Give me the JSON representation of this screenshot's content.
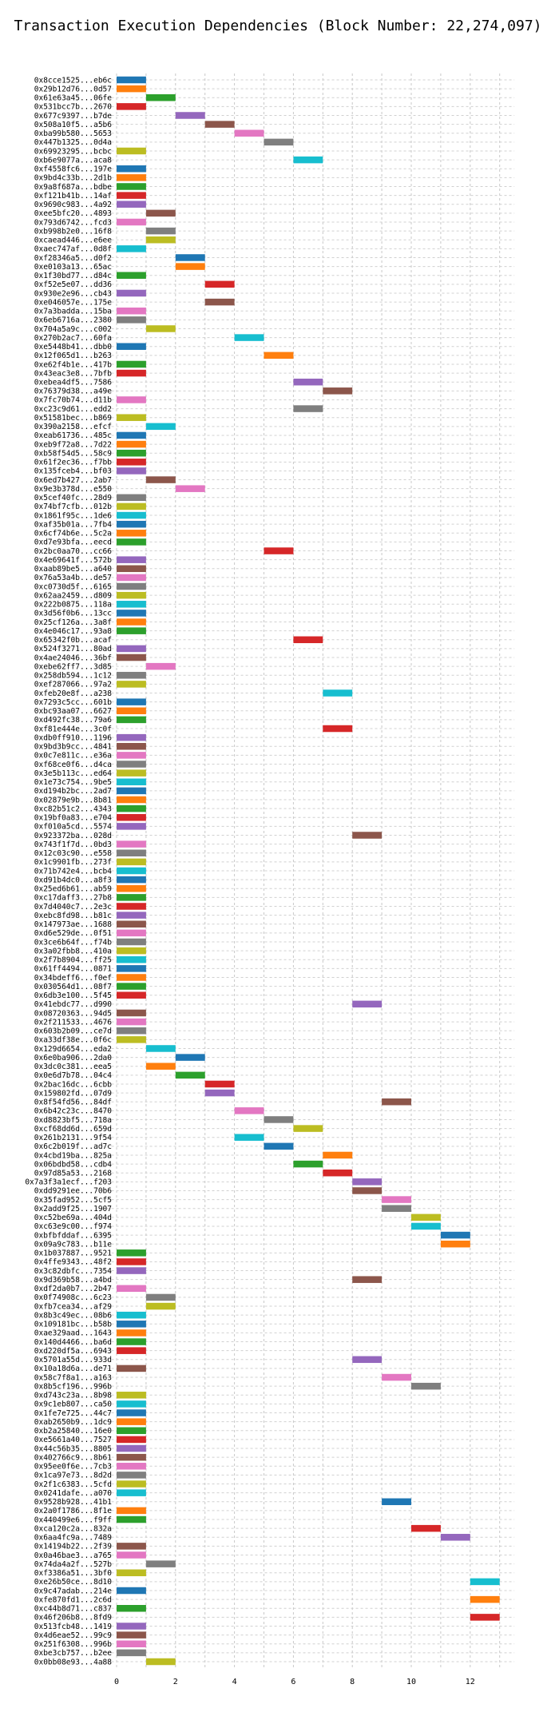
{
  "chart_data": {
    "type": "gantt",
    "title": "Transaction Execution Dependencies (Block Number: 22,274,097)",
    "xlabel": "",
    "ylabel": "",
    "xlim": [
      -0.5,
      13.5
    ],
    "x_ticks": [
      0,
      2,
      4,
      6,
      8,
      10,
      12
    ],
    "grid": true,
    "bar_width": 1,
    "palette": [
      "#1f77b4",
      "#ff7f0e",
      "#2ca02c",
      "#d62728",
      "#9467bd",
      "#8c564b",
      "#e377c2",
      "#7f7f7f",
      "#bcbd22",
      "#17becf"
    ],
    "transactions": [
      {
        "label": "0x8cce1525...eb6c",
        "start": 0
      },
      {
        "label": "0x29b12d76...0d57",
        "start": 0
      },
      {
        "label": "0x61e63a45...06fe",
        "start": 1
      },
      {
        "label": "0x531bcc7b...2670",
        "start": 0
      },
      {
        "label": "0x677c9397...b7de",
        "start": 2
      },
      {
        "label": "0x508a10f5...a5b6",
        "start": 3
      },
      {
        "label": "0xba99b580...5653",
        "start": 4
      },
      {
        "label": "0x447b1325...0d4a",
        "start": 5
      },
      {
        "label": "0x69923295...bcbc",
        "start": 0
      },
      {
        "label": "0xb6e9077a...aca8",
        "start": 6
      },
      {
        "label": "0xf4558fc6...197e",
        "start": 0
      },
      {
        "label": "0x9bd4c33b...2d1b",
        "start": 0
      },
      {
        "label": "0x9a8f687a...bdbe",
        "start": 0
      },
      {
        "label": "0xf121b41b...14af",
        "start": 0
      },
      {
        "label": "0x9690c983...4a92",
        "start": 0
      },
      {
        "label": "0xee5bfc20...4893",
        "start": 1
      },
      {
        "label": "0x793d6742...fcd3",
        "start": 0
      },
      {
        "label": "0xb998b2e0...16f8",
        "start": 1
      },
      {
        "label": "0xcaead446...e6ee",
        "start": 1
      },
      {
        "label": "0xaec747af...0d8f",
        "start": 0
      },
      {
        "label": "0xf28346a5...d0f2",
        "start": 2
      },
      {
        "label": "0xe0103a13...65ac",
        "start": 2
      },
      {
        "label": "0x1f30bd77...d84c",
        "start": 0
      },
      {
        "label": "0xf52e5e07...dd36",
        "start": 3
      },
      {
        "label": "0x930e2e96...cb43",
        "start": 0
      },
      {
        "label": "0xe046057e...175e",
        "start": 3
      },
      {
        "label": "0x7a3badda...15ba",
        "start": 0
      },
      {
        "label": "0x6eb6716a...2380",
        "start": 0
      },
      {
        "label": "0x704a5a9c...c002",
        "start": 1
      },
      {
        "label": "0x270b2ac7...60fa",
        "start": 4
      },
      {
        "label": "0xe5448b41...dbb0",
        "start": 0
      },
      {
        "label": "0x12f065d1...b263",
        "start": 5
      },
      {
        "label": "0xe62f4b1e...417b",
        "start": 0
      },
      {
        "label": "0x43eac3e8...7bfb",
        "start": 0
      },
      {
        "label": "0xebea4df5...7586",
        "start": 6
      },
      {
        "label": "0x76379d38...a49e",
        "start": 7
      },
      {
        "label": "0x7fc70b74...d11b",
        "start": 0
      },
      {
        "label": "0xc23c9d61...edd2",
        "start": 6
      },
      {
        "label": "0x51581bec...b869",
        "start": 0
      },
      {
        "label": "0x390a2158...efcf",
        "start": 1
      },
      {
        "label": "0xeab61736...485c",
        "start": 0
      },
      {
        "label": "0xeb9f72a8...7d22",
        "start": 0
      },
      {
        "label": "0xb58f54d5...58c9",
        "start": 0
      },
      {
        "label": "0x61f2ec36...f7bb",
        "start": 0
      },
      {
        "label": "0x135fceb4...bf03",
        "start": 0
      },
      {
        "label": "0x6ed7b427...2ab7",
        "start": 1
      },
      {
        "label": "0x9e3b378d...e550",
        "start": 2
      },
      {
        "label": "0x5cef40fc...28d9",
        "start": 0
      },
      {
        "label": "0x74bf7cfb...012b",
        "start": 0
      },
      {
        "label": "0x1861f95c...1de6",
        "start": 0
      },
      {
        "label": "0xaf35b01a...7fb4",
        "start": 0
      },
      {
        "label": "0x6cf74b6e...5c2a",
        "start": 0
      },
      {
        "label": "0xd7e93bfa...eecd",
        "start": 0
      },
      {
        "label": "0x2bc0aa70...cc66",
        "start": 5
      },
      {
        "label": "0x4e69641f...572b",
        "start": 0
      },
      {
        "label": "0xaab89be5...a640",
        "start": 0
      },
      {
        "label": "0x76a53a4b...de57",
        "start": 0
      },
      {
        "label": "0xc0730d5f...6165",
        "start": 0
      },
      {
        "label": "0x62aa2459...d809",
        "start": 0
      },
      {
        "label": "0x222b0875...118a",
        "start": 0
      },
      {
        "label": "0x3d56f0b6...13cc",
        "start": 0
      },
      {
        "label": "0x25cf126a...3a8f",
        "start": 0
      },
      {
        "label": "0x4e046c17...93a8",
        "start": 0
      },
      {
        "label": "0x65342f0b...acaf",
        "start": 6
      },
      {
        "label": "0x524f3271...80ad",
        "start": 0
      },
      {
        "label": "0x4ae24046...36bf",
        "start": 0
      },
      {
        "label": "0xebe62ff7...3d85",
        "start": 1
      },
      {
        "label": "0x258db594...1c12",
        "start": 0
      },
      {
        "label": "0xef287066...97a2",
        "start": 0
      },
      {
        "label": "0xfeb20e8f...a238",
        "start": 7
      },
      {
        "label": "0x7293c5cc...601b",
        "start": 0
      },
      {
        "label": "0xbc93aa07...6627",
        "start": 0
      },
      {
        "label": "0xd492fc38...79a6",
        "start": 0
      },
      {
        "label": "0xf81e444e...3c0f",
        "start": 7
      },
      {
        "label": "0xdb0ff910...1196",
        "start": 0
      },
      {
        "label": "0x9bd3b9cc...4841",
        "start": 0
      },
      {
        "label": "0x0c7e811c...e36a",
        "start": 0
      },
      {
        "label": "0xf68ce0f6...d4ca",
        "start": 0
      },
      {
        "label": "0x3e5b113c...ed64",
        "start": 0
      },
      {
        "label": "0x1e73c754...9be5",
        "start": 0
      },
      {
        "label": "0xd194b2bc...2ad7",
        "start": 0
      },
      {
        "label": "0x02879e9b...8b81",
        "start": 0
      },
      {
        "label": "0xc82b51c2...4343",
        "start": 0
      },
      {
        "label": "0x19bf0a83...e704",
        "start": 0
      },
      {
        "label": "0xf010a5cd...5574",
        "start": 0
      },
      {
        "label": "0x923372ba...028d",
        "start": 8
      },
      {
        "label": "0x743f1f7d...0bd3",
        "start": 0
      },
      {
        "label": "0x12c03c90...e558",
        "start": 0
      },
      {
        "label": "0x1c9901fb...273f",
        "start": 0
      },
      {
        "label": "0x71b742e4...bcb4",
        "start": 0
      },
      {
        "label": "0xd91b4dc0...a8f3",
        "start": 0
      },
      {
        "label": "0x25ed6b61...ab59",
        "start": 0
      },
      {
        "label": "0xc17daff3...27b8",
        "start": 0
      },
      {
        "label": "0x7d4040c7...2e3c",
        "start": 0
      },
      {
        "label": "0xebc8fd98...b81c",
        "start": 0
      },
      {
        "label": "0x147973ae...1688",
        "start": 0
      },
      {
        "label": "0xd6e529de...0f51",
        "start": 0
      },
      {
        "label": "0x3ce6b64f...f74b",
        "start": 0
      },
      {
        "label": "0x3a02fbb8...410a",
        "start": 0
      },
      {
        "label": "0x2f7b8904...ff25",
        "start": 0
      },
      {
        "label": "0x61ff4494...0871",
        "start": 0
      },
      {
        "label": "0x34bdeff6...f0ef",
        "start": 0
      },
      {
        "label": "0x030564d1...08f7",
        "start": 0
      },
      {
        "label": "0x6db3e100...5f45",
        "start": 0
      },
      {
        "label": "0x41ebdc77...d990",
        "start": 8
      },
      {
        "label": "0x08720363...94d5",
        "start": 0
      },
      {
        "label": "0x2f211533...4676",
        "start": 0
      },
      {
        "label": "0x603b2b09...ce7d",
        "start": 0
      },
      {
        "label": "0xa33df38e...0f6c",
        "start": 0
      },
      {
        "label": "0x129d6654...eda2",
        "start": 1
      },
      {
        "label": "0x6e0ba906...2da0",
        "start": 2
      },
      {
        "label": "0x3dc0c381...eea5",
        "start": 1
      },
      {
        "label": "0x0e6d7b78...04c4",
        "start": 2
      },
      {
        "label": "0x2bac16dc...6cbb",
        "start": 3
      },
      {
        "label": "0x159802fd...07d9",
        "start": 3
      },
      {
        "label": "0x8f54fd56...84df",
        "start": 9
      },
      {
        "label": "0x6b42c23c...8470",
        "start": 4
      },
      {
        "label": "0xd8823bf5...718a",
        "start": 5
      },
      {
        "label": "0xcf68dd6d...659d",
        "start": 6
      },
      {
        "label": "0x261b2131...9f54",
        "start": 4
      },
      {
        "label": "0x6c2b019f...ad7c",
        "start": 5
      },
      {
        "label": "0x4cbd19ba...825a",
        "start": 7
      },
      {
        "label": "0x06bdbd58...cdb4",
        "start": 6
      },
      {
        "label": "0x97d85a53...2168",
        "start": 7
      },
      {
        "label": "0x7a3f3a1ecf...f203",
        "start": 8
      },
      {
        "label": "0xdd9291ee...70b6",
        "start": 8
      },
      {
        "label": "0x35fad952...5cf5",
        "start": 9
      },
      {
        "label": "0x2add9f25...1907",
        "start": 9
      },
      {
        "label": "0xc52be69a...404d",
        "start": 10
      },
      {
        "label": "0xc63e9c00...f974",
        "start": 10
      },
      {
        "label": "0xbfbfddaf...6395",
        "start": 11
      },
      {
        "label": "0x09a9c783...b11e",
        "start": 11
      },
      {
        "label": "0x1b037887...9521",
        "start": 0
      },
      {
        "label": "0x4ffe9343...48f2",
        "start": 0
      },
      {
        "label": "0x3c82dbfc...7354",
        "start": 0
      },
      {
        "label": "0x9d369b58...a4bd",
        "start": 8
      },
      {
        "label": "0xdf2da0b7...2b47",
        "start": 0
      },
      {
        "label": "0x0f74908c...6c23",
        "start": 1
      },
      {
        "label": "0xfb7cea34...af29",
        "start": 1
      },
      {
        "label": "0x8b3c49ec...08b6",
        "start": 0
      },
      {
        "label": "0x109181bc...b58b",
        "start": 0
      },
      {
        "label": "0xae329aad...1643",
        "start": 0
      },
      {
        "label": "0x140d4466...ba6d",
        "start": 0
      },
      {
        "label": "0xd220df5a...6943",
        "start": 0
      },
      {
        "label": "0x5701a55d...933d",
        "start": 8
      },
      {
        "label": "0x10a18d6a...de71",
        "start": 0
      },
      {
        "label": "0x58c7f8a1...a163",
        "start": 9
      },
      {
        "label": "0x8b5cf196...996b",
        "start": 10
      },
      {
        "label": "0xd743c23a...8b98",
        "start": 0
      },
      {
        "label": "0x9c1eb807...ca50",
        "start": 0
      },
      {
        "label": "0x1fe7e725...44c7",
        "start": 0
      },
      {
        "label": "0xab2650b9...1dc9",
        "start": 0
      },
      {
        "label": "0xb2a25840...16e0",
        "start": 0
      },
      {
        "label": "0xe5661a40...7527",
        "start": 0
      },
      {
        "label": "0x44c56b35...8805",
        "start": 0
      },
      {
        "label": "0x402766c9...8b61",
        "start": 0
      },
      {
        "label": "0x95ee0f6e...7cb3",
        "start": 0
      },
      {
        "label": "0x1ca97e73...8d2d",
        "start": 0
      },
      {
        "label": "0x2f1c6383...5cfd",
        "start": 0
      },
      {
        "label": "0x0241dafe...a070",
        "start": 0
      },
      {
        "label": "0x9528b928...41b1",
        "start": 9
      },
      {
        "label": "0x2a0f1786...8f1e",
        "start": 0
      },
      {
        "label": "0x440499e6...f9ff",
        "start": 0
      },
      {
        "label": "0xca120c2a...832a",
        "start": 10
      },
      {
        "label": "0x6aa4fc9a...7489",
        "start": 11
      },
      {
        "label": "0x14194b22...2f39",
        "start": 0
      },
      {
        "label": "0x0a46bae3...a765",
        "start": 0
      },
      {
        "label": "0x74da4a2f...527b",
        "start": 1
      },
      {
        "label": "0xf3386a51...3bf0",
        "start": 0
      },
      {
        "label": "0xe26b50ce...8d10",
        "start": 12
      },
      {
        "label": "0x9c47adab...214e",
        "start": 0
      },
      {
        "label": "0xfe870fd1...2c6d",
        "start": 12
      },
      {
        "label": "0xc44b8d71...c837",
        "start": 0
      },
      {
        "label": "0x46f206b8...8fd9",
        "start": 12
      },
      {
        "label": "0x513fcb48...1419",
        "start": 0
      },
      {
        "label": "0x4d6eae52...99c9",
        "start": 0
      },
      {
        "label": "0x251f6308...996b",
        "start": 0
      },
      {
        "label": "0xbe3cb757...b2ee",
        "start": 0
      },
      {
        "label": "0x0bb08e93...4a88",
        "start": 1
      }
    ]
  }
}
